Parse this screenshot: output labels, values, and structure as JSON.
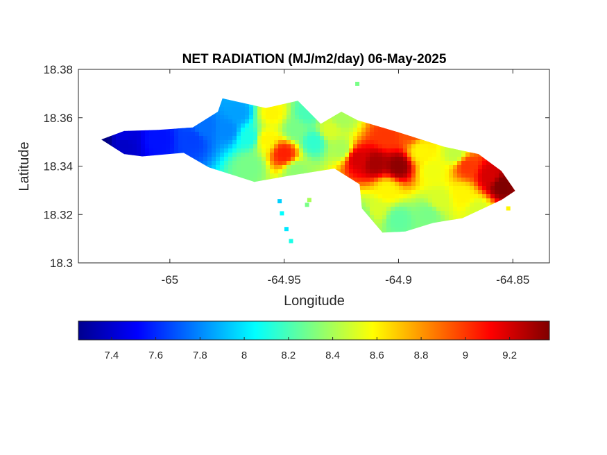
{
  "chart_data": {
    "type": "heatmap",
    "title": "NET RADIATION (MJ/m2/day) 06-May-2025",
    "xlabel": "Longitude",
    "ylabel": "Latitude",
    "xlim": [
      -65.04,
      -64.834
    ],
    "ylim": [
      18.3,
      18.38
    ],
    "xticks": [
      -65,
      -64.95,
      -64.9,
      -64.85
    ],
    "xtick_labels": [
      "-65",
      "-64.95",
      "-64.9",
      "-64.85"
    ],
    "yticks": [
      18.3,
      18.32,
      18.34,
      18.36,
      18.38
    ],
    "ytick_labels": [
      "18.3",
      "18.32",
      "18.34",
      "18.36",
      "18.38"
    ],
    "colormap": "jet",
    "colorbar": {
      "orientation": "horizontal",
      "placement": "below",
      "range": [
        7.25,
        9.38
      ],
      "ticks": [
        7.4,
        7.6,
        7.8,
        8,
        8.2,
        8.4,
        8.6,
        8.8,
        9,
        9.2
      ],
      "tick_labels": [
        "7.4",
        "7.6",
        "7.8",
        "8",
        "8.2",
        "8.4",
        "8.6",
        "8.8",
        "9",
        "9.2"
      ]
    },
    "island_outline": [
      [
        -65.03,
        18.351
      ],
      [
        -65.02,
        18.3545
      ],
      [
        -65.005,
        18.355
      ],
      [
        -64.99,
        18.356
      ],
      [
        -64.979,
        18.3625
      ],
      [
        -64.977,
        18.368
      ],
      [
        -64.958,
        18.364
      ],
      [
        -64.944,
        18.367
      ],
      [
        -64.934,
        18.3575
      ],
      [
        -64.925,
        18.3625
      ],
      [
        -64.918,
        18.359
      ],
      [
        -64.9,
        18.354
      ],
      [
        -64.88,
        18.348
      ],
      [
        -64.865,
        18.345
      ],
      [
        -64.855,
        18.338
      ],
      [
        -64.849,
        18.3298
      ],
      [
        -64.855,
        18.326
      ],
      [
        -64.872,
        18.3185
      ],
      [
        -64.885,
        18.3165
      ],
      [
        -64.897,
        18.313
      ],
      [
        -64.907,
        18.3125
      ],
      [
        -64.916,
        18.3225
      ],
      [
        -64.917,
        18.3325
      ],
      [
        -64.928,
        18.339
      ],
      [
        -64.948,
        18.336
      ],
      [
        -64.963,
        18.3335
      ],
      [
        -64.983,
        18.3395
      ],
      [
        -64.994,
        18.3455
      ],
      [
        -65.012,
        18.344
      ],
      [
        -65.02,
        18.345
      ],
      [
        -65.03,
        18.351
      ]
    ],
    "field_points": [
      [
        -65.03,
        18.351,
        7.25
      ],
      [
        -65.02,
        18.349,
        7.4
      ],
      [
        -65.02,
        18.3525,
        7.45
      ],
      [
        -65.005,
        18.351,
        7.55
      ],
      [
        -64.99,
        18.351,
        7.65
      ],
      [
        -64.985,
        18.356,
        7.75
      ],
      [
        -64.97,
        18.362,
        7.85
      ],
      [
        -64.975,
        18.355,
        7.8
      ],
      [
        -64.965,
        18.352,
        8.1
      ],
      [
        -64.965,
        18.34,
        8.3
      ],
      [
        -64.955,
        18.362,
        8.6
      ],
      [
        -64.958,
        18.351,
        8.6
      ],
      [
        -64.95,
        18.345,
        9.05
      ],
      [
        -64.945,
        18.355,
        8.3
      ],
      [
        -64.94,
        18.362,
        8.2
      ],
      [
        -64.937,
        18.35,
        8.15
      ],
      [
        -64.945,
        18.338,
        8.35
      ],
      [
        -64.93,
        18.355,
        8.5
      ],
      [
        -64.925,
        18.347,
        8.4
      ],
      [
        -64.918,
        18.343,
        9.2
      ],
      [
        -64.91,
        18.341,
        9.3
      ],
      [
        -64.905,
        18.352,
        9.0
      ],
      [
        -64.9,
        18.34,
        9.35
      ],
      [
        -64.895,
        18.354,
        8.95
      ],
      [
        -64.89,
        18.346,
        8.6
      ],
      [
        -64.885,
        18.338,
        8.55
      ],
      [
        -64.882,
        18.326,
        8.5
      ],
      [
        -64.905,
        18.33,
        8.6
      ],
      [
        -64.91,
        18.322,
        8.5
      ],
      [
        -64.9,
        18.318,
        8.25
      ],
      [
        -64.887,
        18.32,
        8.3
      ],
      [
        -64.87,
        18.34,
        9.0
      ],
      [
        -64.872,
        18.328,
        8.6
      ],
      [
        -64.86,
        18.336,
        9.2
      ],
      [
        -64.855,
        18.332,
        9.38
      ],
      [
        -64.865,
        18.322,
        8.5
      ],
      [
        -64.925,
        18.36,
        8.4
      ],
      [
        -64.915,
        18.32,
        8.35
      ],
      [
        -64.875,
        18.345,
        8.45
      ]
    ],
    "outlier_points": [
      [
        -64.952,
        18.3255,
        7.95
      ],
      [
        -64.951,
        18.3205,
        8.05
      ],
      [
        -64.949,
        18.314,
        8.0
      ],
      [
        -64.947,
        18.309,
        8.1
      ],
      [
        -64.94,
        18.324,
        8.3
      ],
      [
        -64.939,
        18.326,
        8.4
      ],
      [
        -64.918,
        18.374,
        8.3
      ],
      [
        -64.852,
        18.3225,
        8.6
      ]
    ]
  }
}
